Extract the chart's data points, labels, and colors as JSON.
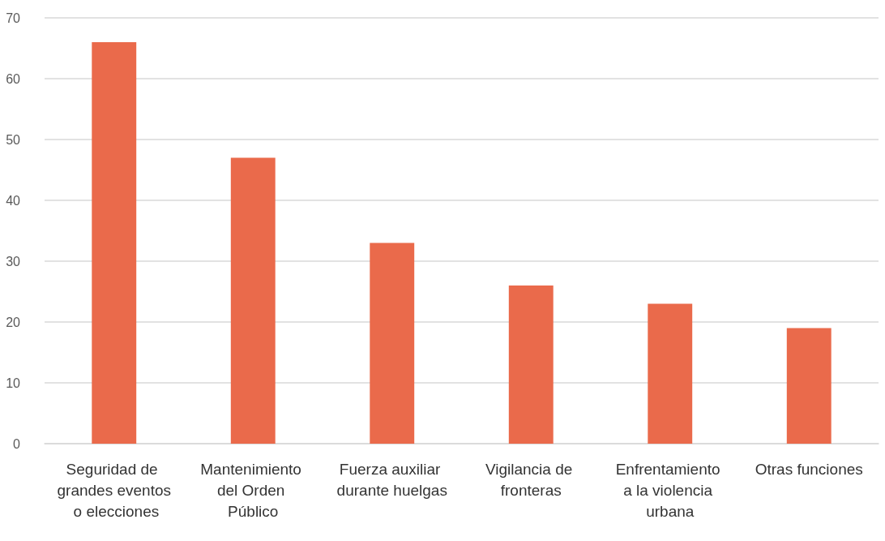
{
  "chart_data": {
    "type": "bar",
    "categories": [
      "Seguridad de grandes eventos o elecciones",
      "Mantenimiento del Orden Público",
      "Fuerza auxiliar durante huelgas",
      "Vigilancia de fronteras",
      "Enfrentamiento a la violencia urbana",
      "Otras funciones"
    ],
    "values": [
      66,
      47,
      33,
      26,
      23,
      19
    ],
    "color": "#ea6a4b",
    "ylim": [
      0,
      70
    ],
    "yticks": [
      0,
      10,
      20,
      30,
      40,
      50,
      60,
      70
    ],
    "grid": "y"
  }
}
